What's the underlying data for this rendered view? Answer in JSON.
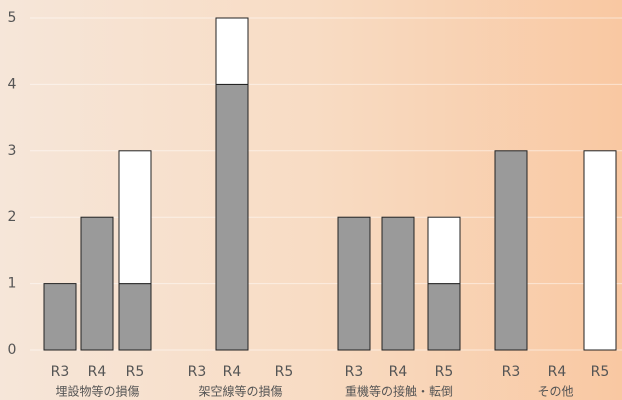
{
  "chart_data": {
    "type": "stacked-bar",
    "categories": [
      "R3",
      "R4",
      "R5",
      "R3",
      "R4",
      "R5",
      "R3",
      "R4",
      "R5",
      "R3",
      "R4",
      "R5"
    ],
    "groups": [
      "埋設物等の損傷",
      "架空線等の損傷",
      "重機等の接触・転倒",
      "その他"
    ],
    "series": [
      {
        "color": "#9a9a9a",
        "values": [
          1,
          2,
          1,
          0,
          4,
          0,
          2,
          2,
          1,
          3,
          0,
          0
        ]
      },
      {
        "color": "#ffffff",
        "values": [
          0,
          0,
          2,
          0,
          1,
          0,
          0,
          0,
          1,
          0,
          0,
          3
        ]
      }
    ],
    "ylim": [
      0,
      5
    ],
    "yticks": [
      0,
      1,
      2,
      3,
      4,
      5
    ],
    "grid": true
  }
}
